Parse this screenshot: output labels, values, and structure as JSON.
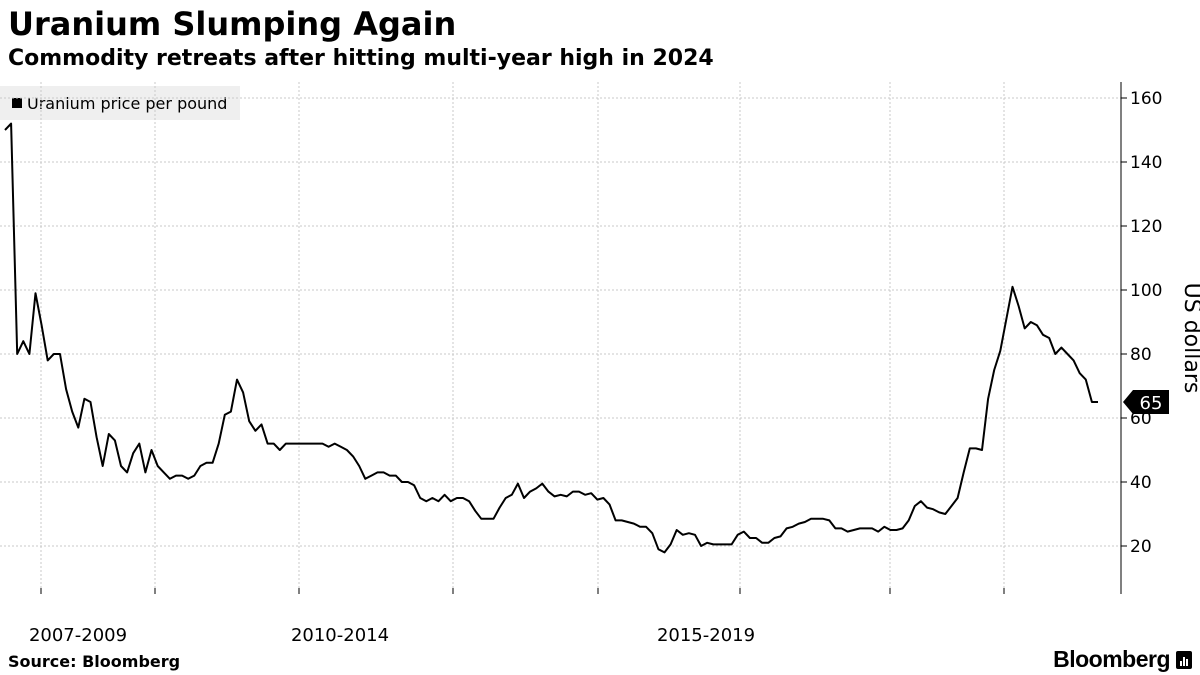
{
  "title": "Uranium Slumping Again",
  "subtitle": "Commodity retreats after hitting multi-year high in 2024",
  "legend_label": "Uranium price per pound",
  "source": "Source: Bloomberg",
  "brand": "Bloomberg",
  "chart_data": {
    "type": "line",
    "title": "Uranium Slumping Again",
    "subtitle": "Commodity retreats after hitting multi-year high in 2024",
    "ylabel": "US dollars",
    "ylim": [
      5,
      165
    ],
    "yticks": [
      20,
      40,
      60,
      80,
      100,
      120,
      140,
      160
    ],
    "y_axis_side": "right",
    "grid": true,
    "legend_position": "top-left",
    "x_period_labels": [
      "2007-2009",
      "2010-2014",
      "2015-2019"
    ],
    "last_value_label": "65",
    "series": [
      {
        "name": "Uranium price per pound",
        "color": "#000000",
        "values": [
          150,
          152,
          80,
          84,
          80,
          99,
          89,
          78,
          80,
          80,
          69,
          62,
          57,
          66,
          65,
          54,
          45,
          55,
          53,
          45,
          43,
          49,
          52,
          43,
          50,
          45,
          43,
          41,
          42,
          42,
          41,
          42,
          45,
          46,
          46,
          52,
          61,
          62,
          72,
          68,
          59,
          56,
          58,
          52,
          52,
          50,
          52,
          52,
          52,
          52,
          52,
          52,
          52,
          51,
          52,
          51,
          50,
          48,
          45,
          41,
          42,
          43,
          43,
          42,
          42,
          40,
          40,
          39,
          35,
          34,
          35,
          34,
          36,
          34,
          35,
          35,
          34,
          31,
          28.5,
          28.5,
          28.5,
          32,
          35,
          36,
          39.5,
          35,
          37,
          38,
          39.5,
          37,
          35.5,
          36,
          35.5,
          37,
          37,
          36,
          36.5,
          34.5,
          35,
          33,
          28,
          28,
          27.5,
          27,
          26,
          26,
          24,
          19,
          18,
          20.5,
          25,
          23.5,
          24,
          23.5,
          20,
          21,
          20.5,
          20.5,
          20.5,
          20.5,
          23.5,
          24.5,
          22.5,
          22.5,
          21,
          21,
          22.5,
          23,
          25.5,
          26,
          27,
          27.5,
          28.5,
          28.5,
          28.5,
          28,
          25.5,
          25.5,
          24.5,
          25,
          25.5,
          25.5,
          25.5,
          24.5,
          26,
          25,
          25,
          25.5,
          28,
          32.5,
          34,
          32,
          31.5,
          30.5,
          30,
          32.5,
          35,
          43,
          50.5,
          50.5,
          50,
          66,
          75,
          81,
          91,
          101,
          95,
          88,
          90,
          89,
          86,
          85,
          80,
          82,
          80,
          78,
          74,
          72,
          65,
          65
        ]
      }
    ]
  }
}
